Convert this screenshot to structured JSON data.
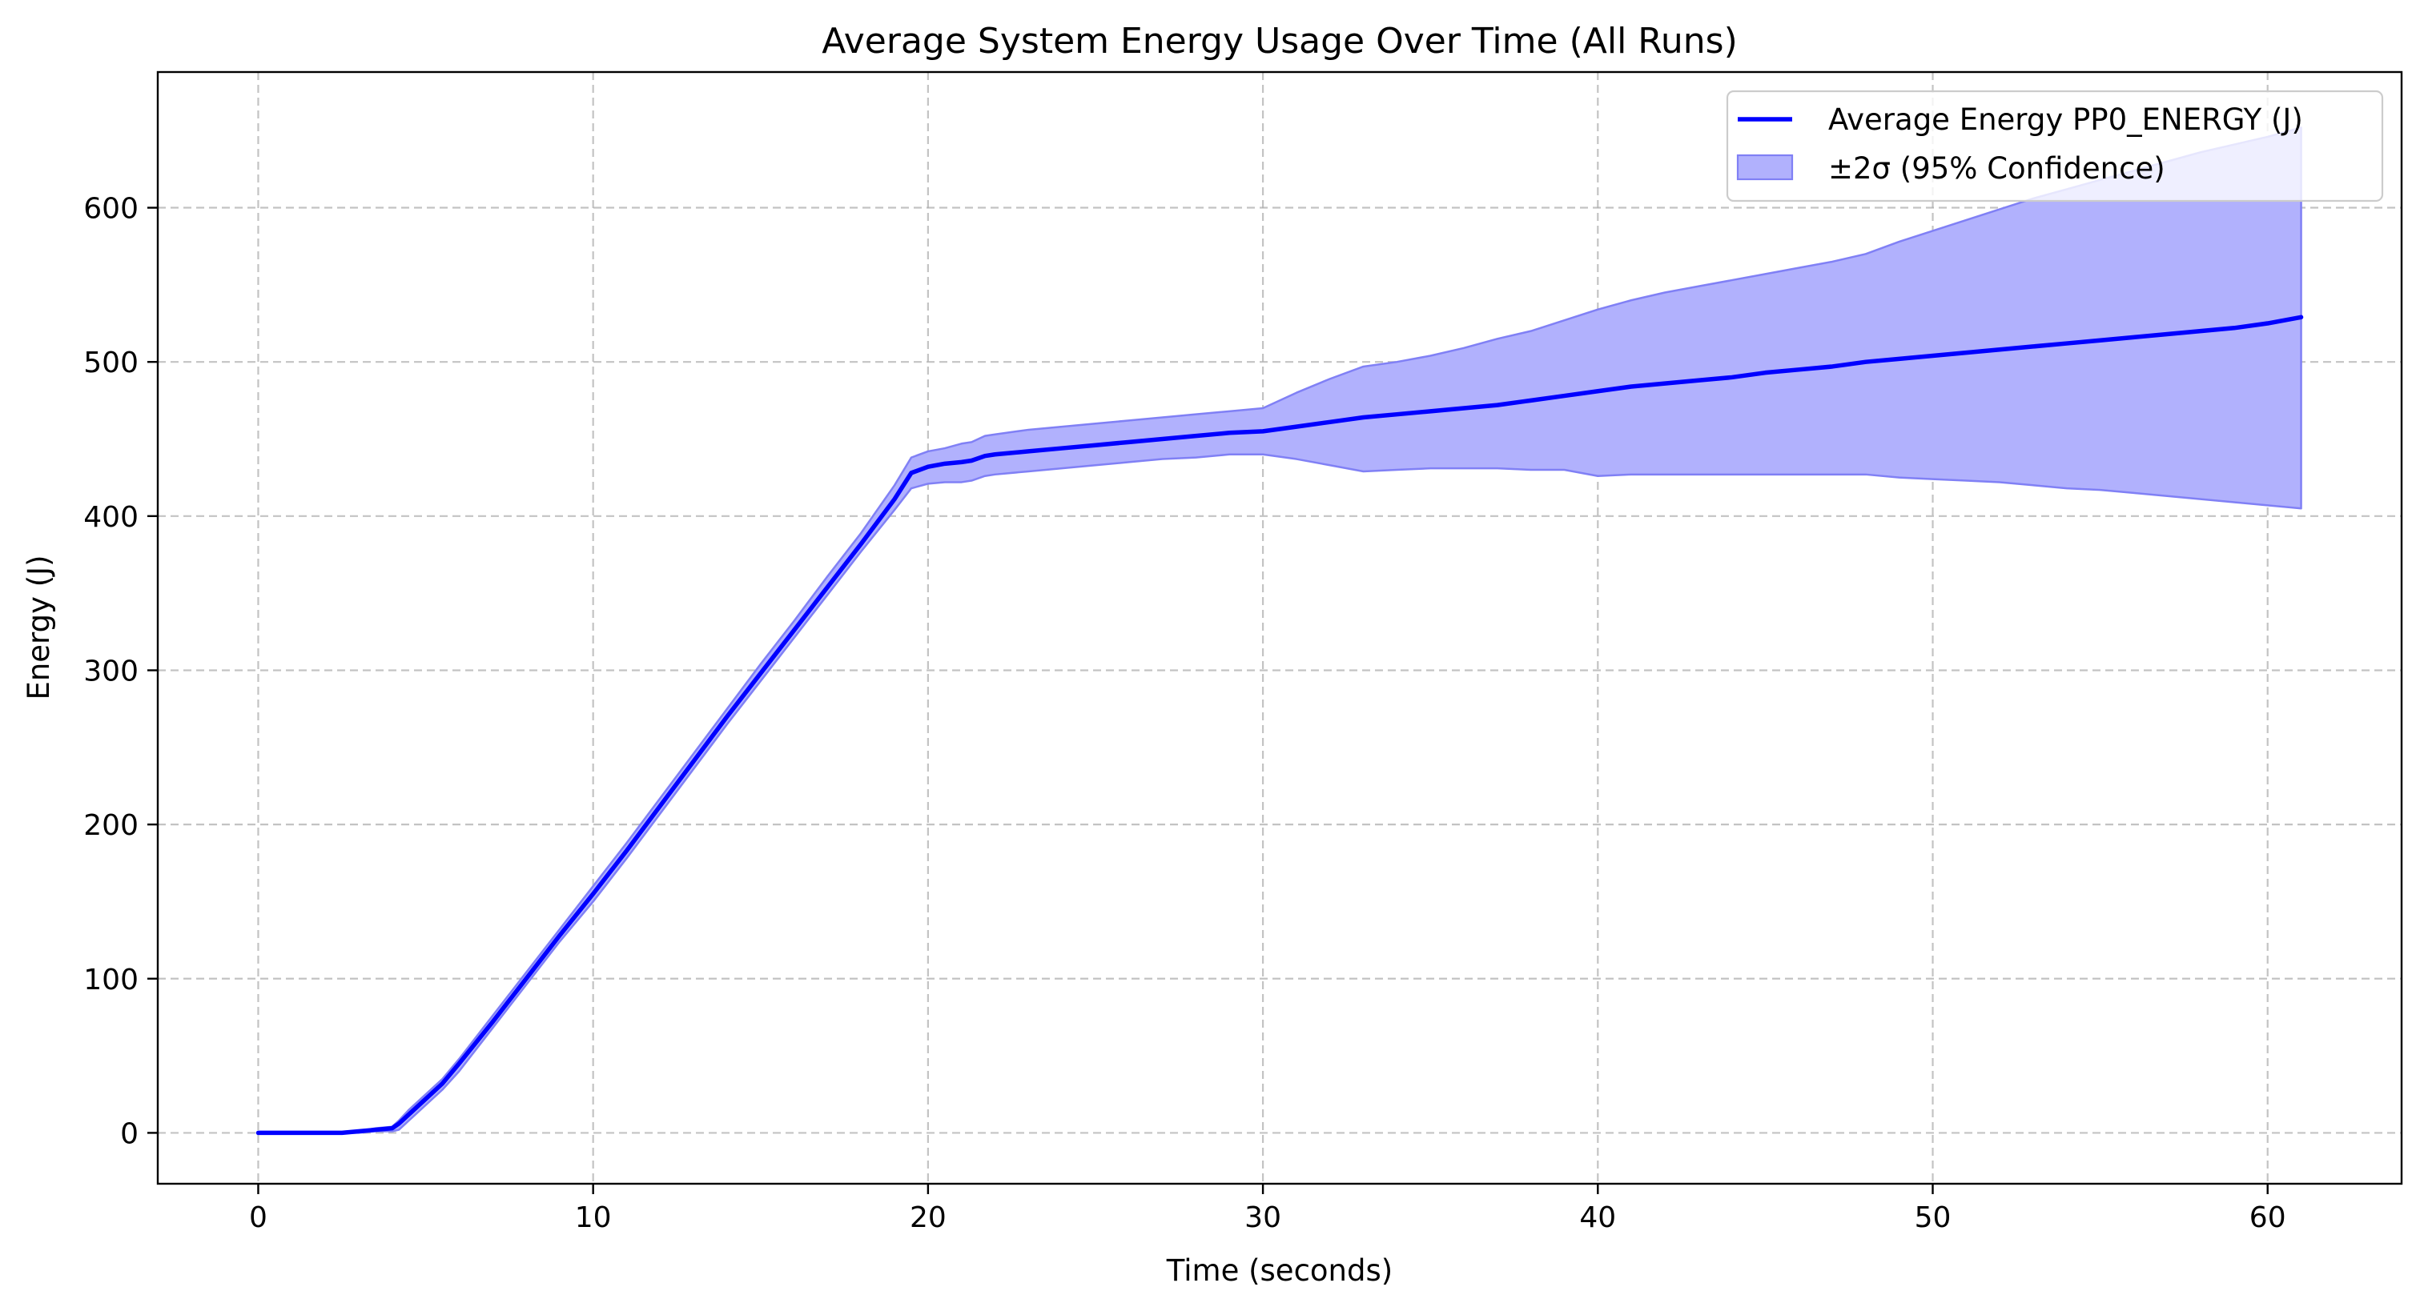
{
  "chart_data": {
    "type": "line",
    "title": "Average System Energy Usage Over Time (All Runs)",
    "xlabel": "Time (seconds)",
    "ylabel": "Energy (J)",
    "xlim": [
      -3,
      64
    ],
    "ylim": [
      -33,
      688
    ],
    "xticks": [
      0,
      10,
      20,
      30,
      40,
      50,
      60
    ],
    "yticks": [
      0,
      100,
      200,
      300,
      400,
      500,
      600
    ],
    "grid": true,
    "legend_position": "top-right",
    "colors": {
      "line": "#0000ff",
      "band_fill": "#b1b1fd",
      "band_edge": "#8080f5",
      "grid": "#b0b0b0",
      "axes": "#000000"
    },
    "series": [
      {
        "name": "Average Energy PP0_ENERGY (J)",
        "kind": "line",
        "x": [
          0,
          1,
          2,
          2.5,
          3,
          3.5,
          4,
          4.2,
          4.5,
          5,
          5.5,
          6,
          7,
          8,
          9,
          10,
          11,
          12,
          13,
          14,
          15,
          16,
          17,
          18,
          19,
          19.5,
          20,
          20.5,
          21,
          21.3,
          21.7,
          22,
          23,
          24,
          25,
          26,
          27,
          28,
          29,
          30,
          31,
          32,
          33,
          34,
          35,
          36,
          37,
          38,
          39,
          40,
          41,
          42,
          43,
          44,
          45,
          46,
          47,
          48,
          49,
          50,
          51,
          52,
          53,
          54,
          55,
          56,
          57,
          58,
          59,
          60,
          61
        ],
        "values": [
          0,
          0,
          0,
          0,
          1,
          2,
          3,
          6,
          12,
          22,
          32,
          45,
          72,
          100,
          128,
          155,
          183,
          212,
          241,
          270,
          298,
          326,
          354,
          382,
          411,
          428,
          432,
          434,
          435,
          436,
          439,
          440,
          442,
          444,
          446,
          448,
          450,
          452,
          454,
          455,
          458,
          461,
          464,
          466,
          468,
          470,
          472,
          475,
          478,
          481,
          484,
          486,
          488,
          490,
          493,
          495,
          497,
          500,
          502,
          504,
          506,
          508,
          510,
          512,
          514,
          516,
          518,
          520,
          522,
          525,
          529
        ]
      },
      {
        "name": "±2σ (95% Confidence)",
        "kind": "band",
        "x": [
          0,
          1,
          2,
          2.5,
          3,
          3.5,
          4,
          4.2,
          4.5,
          5,
          5.5,
          6,
          7,
          8,
          9,
          10,
          11,
          12,
          13,
          14,
          15,
          16,
          17,
          18,
          19,
          19.5,
          20,
          20.5,
          21,
          21.3,
          21.7,
          22,
          23,
          24,
          25,
          26,
          27,
          28,
          29,
          30,
          31,
          32,
          33,
          34,
          35,
          36,
          37,
          38,
          39,
          40,
          41,
          42,
          43,
          44,
          45,
          46,
          47,
          48,
          49,
          50,
          51,
          52,
          53,
          54,
          55,
          56,
          57,
          58,
          59,
          60,
          61
        ],
        "upper": [
          0,
          0,
          0,
          0,
          1,
          3,
          4,
          8,
          15,
          25,
          35,
          48,
          76,
          104,
          132,
          160,
          188,
          217,
          246,
          275,
          304,
          332,
          361,
          389,
          420,
          438,
          442,
          444,
          447,
          448,
          452,
          453,
          456,
          458,
          460,
          462,
          464,
          466,
          468,
          470,
          480,
          489,
          497,
          500,
          504,
          509,
          515,
          520,
          527,
          534,
          540,
          545,
          549,
          553,
          557,
          561,
          565,
          570,
          578,
          585,
          592,
          599,
          606,
          612,
          618,
          624,
          630,
          636,
          641,
          646,
          652
        ],
        "lower": [
          0,
          0,
          0,
          0,
          0,
          1,
          1,
          2,
          8,
          18,
          28,
          40,
          68,
          96,
          124,
          150,
          178,
          207,
          236,
          265,
          293,
          321,
          349,
          377,
          404,
          418,
          421,
          422,
          422,
          423,
          426,
          427,
          429,
          431,
          433,
          435,
          437,
          438,
          440,
          440,
          437,
          433,
          429,
          430,
          431,
          431,
          431,
          430,
          430,
          426,
          427,
          427,
          427,
          427,
          427,
          427,
          427,
          427,
          425,
          424,
          423,
          422,
          420,
          418,
          417,
          415,
          413,
          411,
          409,
          407,
          405
        ]
      }
    ]
  }
}
